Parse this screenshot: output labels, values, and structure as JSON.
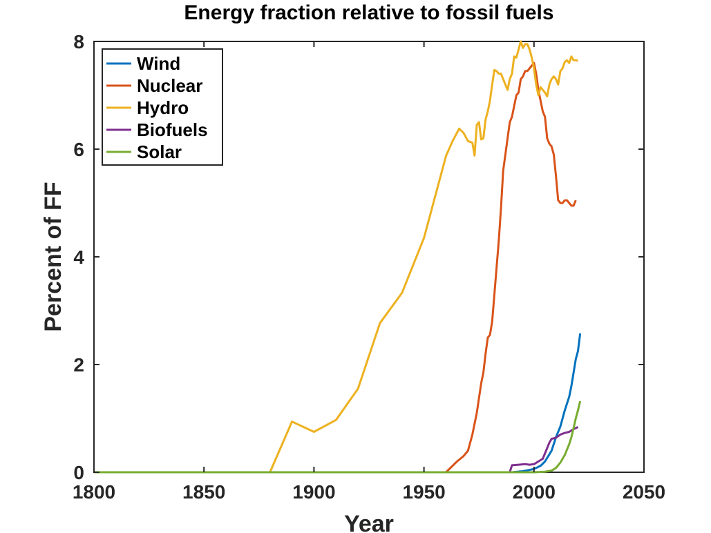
{
  "chart_data": {
    "type": "line",
    "title": "Energy fraction relative to fossil fuels",
    "xlabel": "Year",
    "ylabel": "Percent of FF",
    "xlim": [
      1800,
      2050
    ],
    "ylim": [
      0,
      8
    ],
    "xticks": [
      "1800",
      "1850",
      "1900",
      "1950",
      "2000",
      "2050"
    ],
    "yticks": [
      "0",
      "2",
      "4",
      "6",
      "8"
    ],
    "grid": false,
    "legend_position": "top-left",
    "series": [
      {
        "name": "Wind",
        "color": "#0072BD",
        "points": [
          [
            1800,
            0
          ],
          [
            1990,
            0
          ],
          [
            1995,
            0.02
          ],
          [
            2000,
            0.06
          ],
          [
            2003,
            0.12
          ],
          [
            2005,
            0.2
          ],
          [
            2008,
            0.4
          ],
          [
            2010,
            0.65
          ],
          [
            2012,
            0.85
          ],
          [
            2014,
            1.15
          ],
          [
            2016,
            1.4
          ],
          [
            2017,
            1.6
          ],
          [
            2018,
            1.85
          ],
          [
            2019,
            2.1
          ],
          [
            2020,
            2.25
          ],
          [
            2021,
            2.58
          ]
        ]
      },
      {
        "name": "Nuclear",
        "color": "#D95319",
        "points": [
          [
            1800,
            0
          ],
          [
            1960,
            0
          ],
          [
            1965,
            0.2
          ],
          [
            1968,
            0.3
          ],
          [
            1970,
            0.4
          ],
          [
            1972,
            0.7
          ],
          [
            1974,
            1.1
          ],
          [
            1976,
            1.65
          ],
          [
            1977,
            1.85
          ],
          [
            1978,
            2.2
          ],
          [
            1979,
            2.5
          ],
          [
            1980,
            2.55
          ],
          [
            1981,
            2.8
          ],
          [
            1982,
            3.3
          ],
          [
            1983,
            3.8
          ],
          [
            1984,
            4.3
          ],
          [
            1985,
            4.9
          ],
          [
            1986,
            5.6
          ],
          [
            1987,
            5.9
          ],
          [
            1988,
            6.2
          ],
          [
            1989,
            6.5
          ],
          [
            1990,
            6.6
          ],
          [
            1991,
            6.8
          ],
          [
            1992,
            7.0
          ],
          [
            1993,
            7.05
          ],
          [
            1994,
            7.3
          ],
          [
            1995,
            7.35
          ],
          [
            1996,
            7.45
          ],
          [
            1997,
            7.45
          ],
          [
            1998,
            7.5
          ],
          [
            1999,
            7.55
          ],
          [
            2000,
            7.6
          ],
          [
            2001,
            7.4
          ],
          [
            2002,
            7.1
          ],
          [
            2003,
            6.9
          ],
          [
            2004,
            6.7
          ],
          [
            2005,
            6.6
          ],
          [
            2006,
            6.2
          ],
          [
            2007,
            6.1
          ],
          [
            2008,
            6.05
          ],
          [
            2009,
            5.9
          ],
          [
            2010,
            5.5
          ],
          [
            2011,
            5.05
          ],
          [
            2012,
            5.0
          ],
          [
            2013,
            5.0
          ],
          [
            2014,
            5.05
          ],
          [
            2015,
            5.05
          ],
          [
            2016,
            5.0
          ],
          [
            2017,
            4.95
          ],
          [
            2018,
            4.95
          ],
          [
            2019,
            5.05
          ]
        ]
      },
      {
        "name": "Hydro",
        "color": "#EDB120",
        "points": [
          [
            1800,
            0
          ],
          [
            1880,
            0
          ],
          [
            1890,
            0.94
          ],
          [
            1900,
            0.75
          ],
          [
            1910,
            0.97
          ],
          [
            1920,
            1.55
          ],
          [
            1930,
            2.77
          ],
          [
            1940,
            3.33
          ],
          [
            1950,
            4.35
          ],
          [
            1960,
            5.87
          ],
          [
            1963,
            6.15
          ],
          [
            1966,
            6.38
          ],
          [
            1968,
            6.3
          ],
          [
            1970,
            6.15
          ],
          [
            1972,
            6.12
          ],
          [
            1973,
            5.88
          ],
          [
            1974,
            6.45
          ],
          [
            1975,
            6.5
          ],
          [
            1976,
            6.18
          ],
          [
            1977,
            6.2
          ],
          [
            1978,
            6.55
          ],
          [
            1979,
            6.7
          ],
          [
            1980,
            6.9
          ],
          [
            1981,
            7.2
          ],
          [
            1982,
            7.47
          ],
          [
            1983,
            7.45
          ],
          [
            1984,
            7.4
          ],
          [
            1985,
            7.4
          ],
          [
            1986,
            7.3
          ],
          [
            1987,
            7.2
          ],
          [
            1988,
            7.1
          ],
          [
            1989,
            7.3
          ],
          [
            1990,
            7.4
          ],
          [
            1991,
            7.72
          ],
          [
            1992,
            7.7
          ],
          [
            1993,
            7.85
          ],
          [
            1994,
            8.0
          ],
          [
            1995,
            7.88
          ],
          [
            1996,
            7.95
          ],
          [
            1997,
            7.95
          ],
          [
            1998,
            7.85
          ],
          [
            1999,
            7.7
          ],
          [
            2000,
            7.5
          ],
          [
            2001,
            7.2
          ],
          [
            2002,
            7.0
          ],
          [
            2003,
            7.15
          ],
          [
            2004,
            7.1
          ],
          [
            2005,
            7.05
          ],
          [
            2006,
            6.98
          ],
          [
            2007,
            7.2
          ],
          [
            2008,
            7.3
          ],
          [
            2009,
            7.35
          ],
          [
            2010,
            7.3
          ],
          [
            2011,
            7.2
          ],
          [
            2012,
            7.45
          ],
          [
            2013,
            7.5
          ],
          [
            2014,
            7.62
          ],
          [
            2015,
            7.65
          ],
          [
            2016,
            7.6
          ],
          [
            2017,
            7.72
          ],
          [
            2018,
            7.65
          ],
          [
            2019,
            7.65
          ],
          [
            2020,
            7.64
          ]
        ]
      },
      {
        "name": "Biofuels",
        "color": "#7E2F8E",
        "points": [
          [
            1800,
            0
          ],
          [
            1989,
            0
          ],
          [
            1990,
            0.13
          ],
          [
            1993,
            0.14
          ],
          [
            1996,
            0.15
          ],
          [
            1998,
            0.14
          ],
          [
            2000,
            0.15
          ],
          [
            2002,
            0.2
          ],
          [
            2004,
            0.25
          ],
          [
            2006,
            0.45
          ],
          [
            2007,
            0.55
          ],
          [
            2008,
            0.62
          ],
          [
            2010,
            0.64
          ],
          [
            2012,
            0.7
          ],
          [
            2014,
            0.73
          ],
          [
            2016,
            0.75
          ],
          [
            2018,
            0.8
          ],
          [
            2020,
            0.84
          ]
        ]
      },
      {
        "name": "Solar",
        "color": "#77AC30",
        "points": [
          [
            1800,
            0
          ],
          [
            2000,
            0
          ],
          [
            2005,
            0.01
          ],
          [
            2008,
            0.03
          ],
          [
            2010,
            0.08
          ],
          [
            2012,
            0.18
          ],
          [
            2013,
            0.25
          ],
          [
            2014,
            0.32
          ],
          [
            2015,
            0.42
          ],
          [
            2016,
            0.52
          ],
          [
            2017,
            0.65
          ],
          [
            2018,
            0.82
          ],
          [
            2019,
            1.0
          ],
          [
            2020,
            1.15
          ],
          [
            2021,
            1.32
          ]
        ]
      }
    ]
  }
}
